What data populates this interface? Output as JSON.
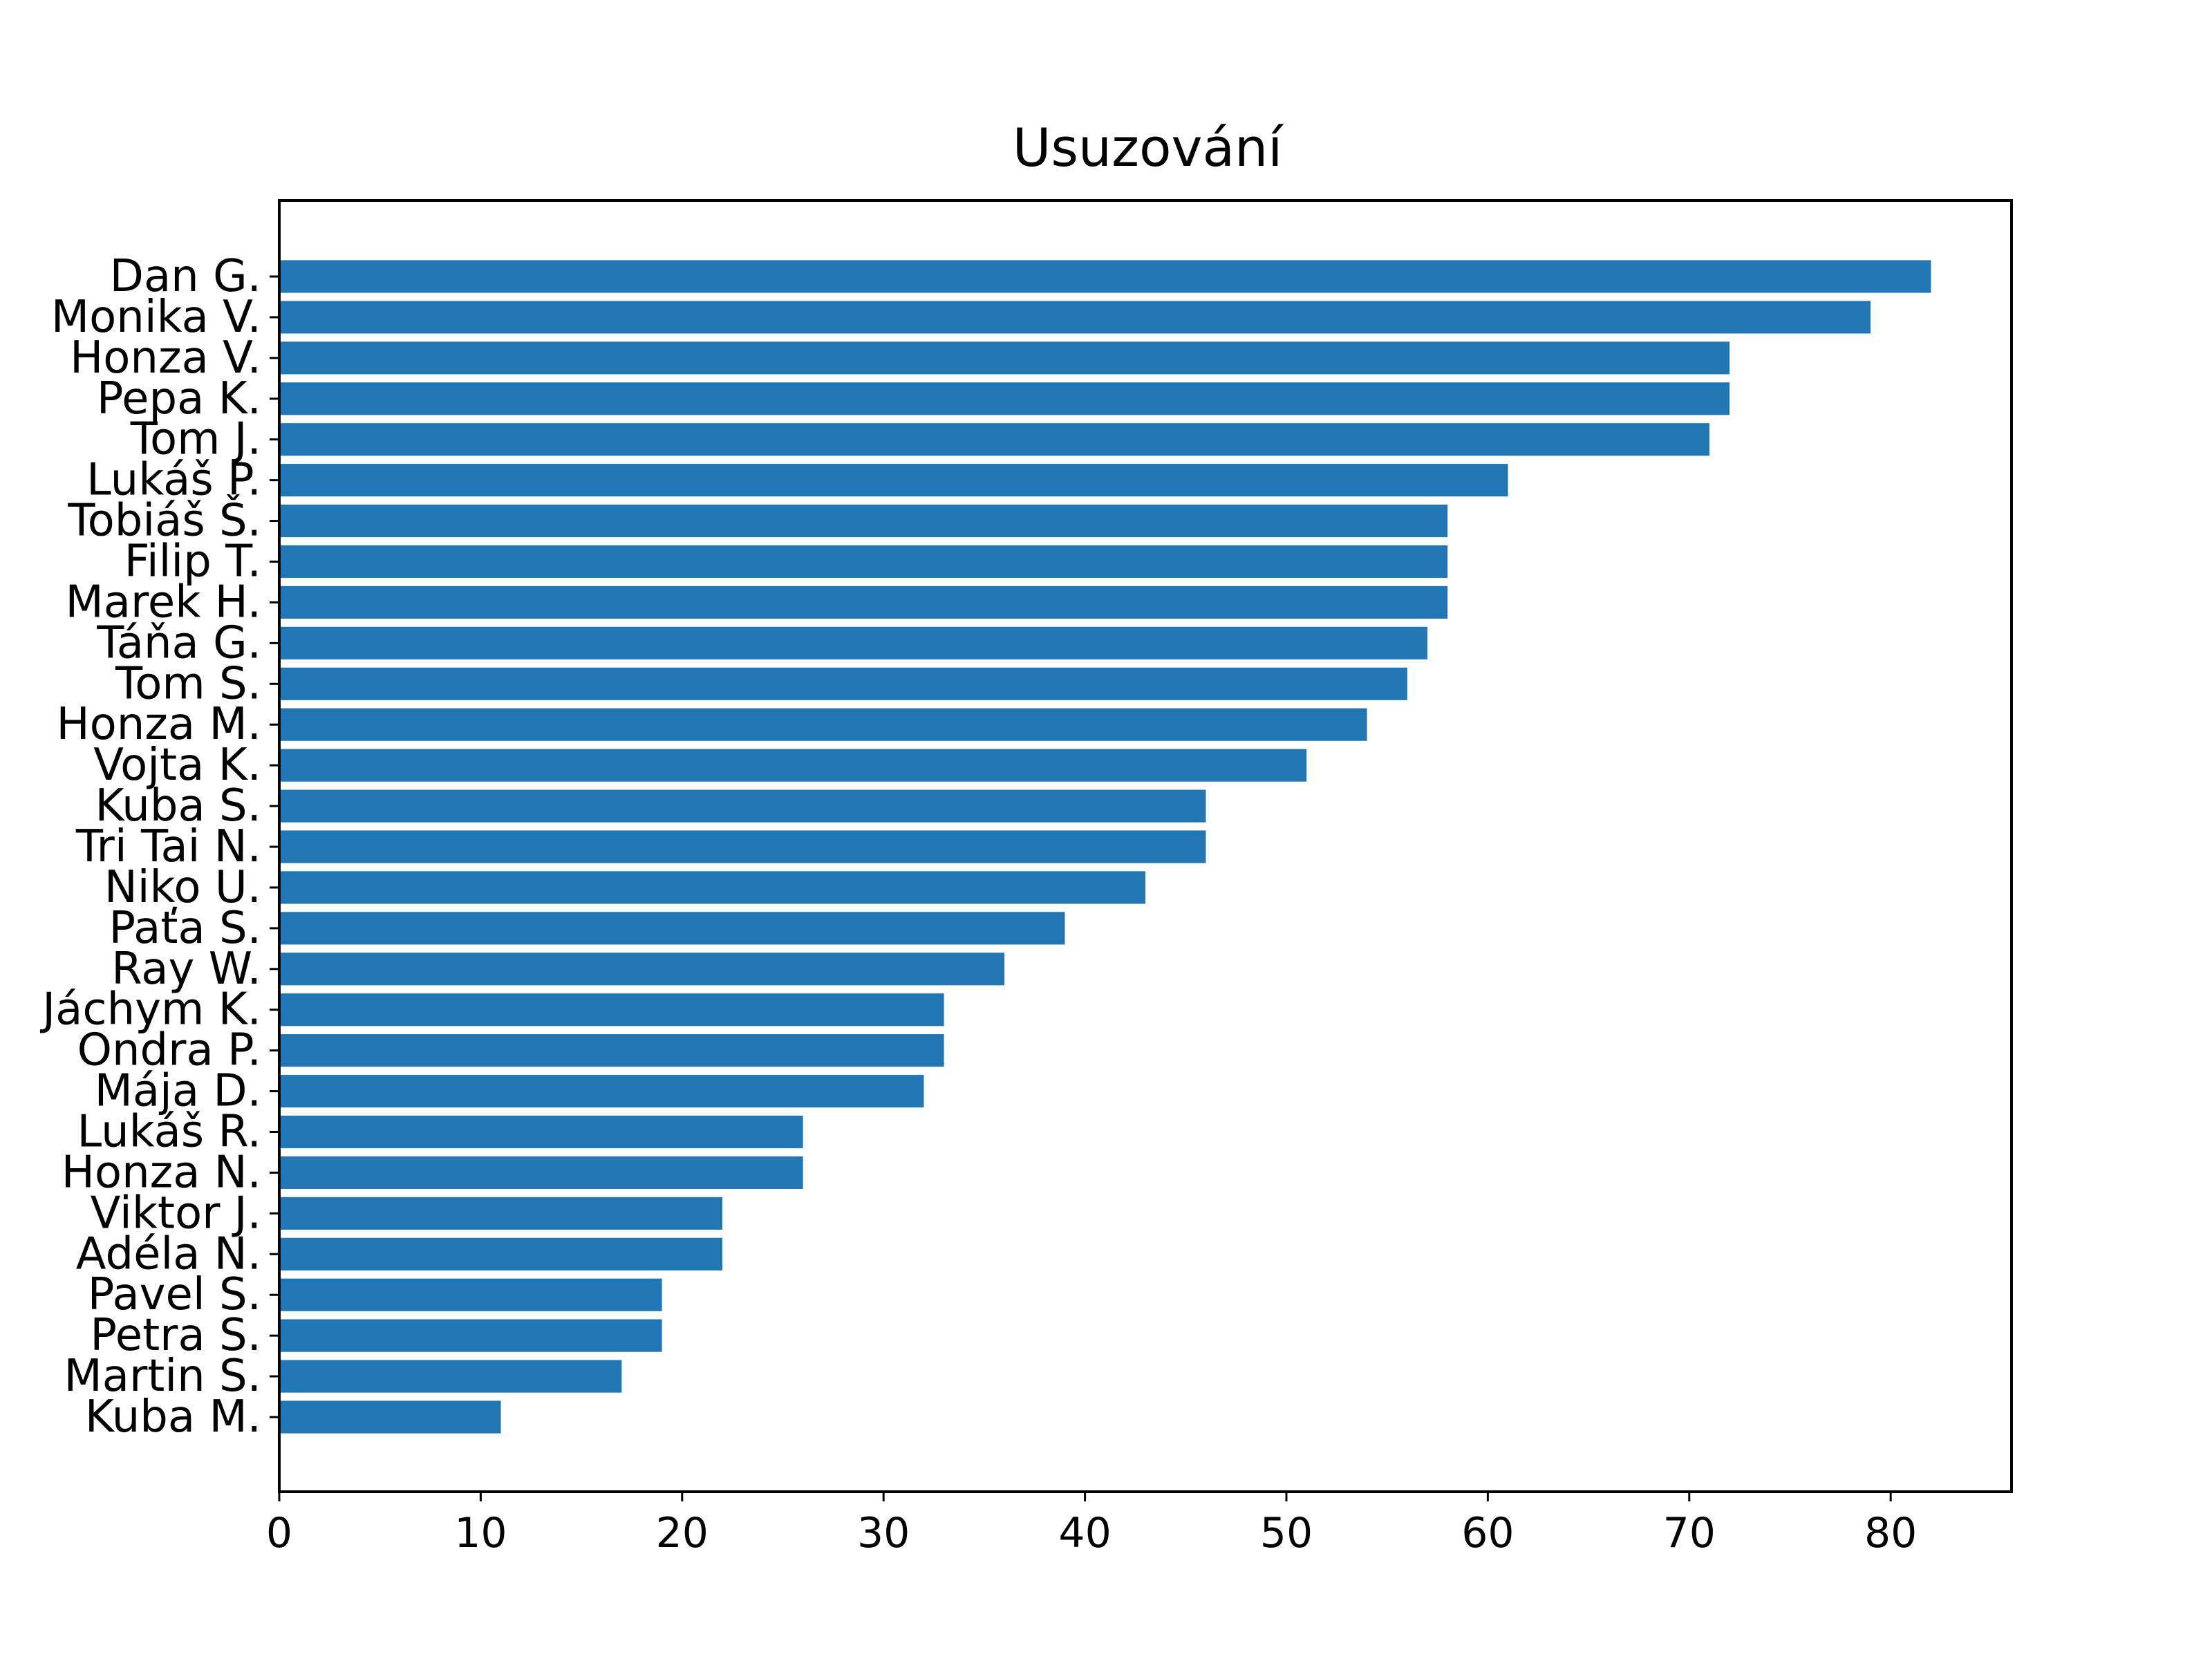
{
  "chart_data": {
    "type": "bar",
    "orientation": "horizontal",
    "title": "Usuzování",
    "xlabel": "",
    "ylabel": "",
    "xlim": [
      0,
      86
    ],
    "xticks": [
      "0",
      "10",
      "20",
      "30",
      "40",
      "50",
      "60",
      "70",
      "80"
    ],
    "bar_color": "#2077b4",
    "grid": false,
    "categories": [
      "Dan G.",
      "Monika V.",
      "Honza V.",
      "Pepa K.",
      "Tom J.",
      "Lukáš P.",
      "Tobiáš Š.",
      "Filip T.",
      "Marek H.",
      "Táňa G.",
      "Tom S.",
      "Honza M.",
      "Vojta K.",
      "Kuba S.",
      "Tri Tai N.",
      "Niko U.",
      "Paťa S.",
      "Ray W.",
      "Jáchym K.",
      "Ondra P.",
      "Mája D.",
      "Lukáš R.",
      "Honza N.",
      "Viktor J.",
      "Adéla N.",
      "Pavel S.",
      "Petra S.",
      "Martin S.",
      "Kuba M."
    ],
    "values": [
      82,
      79,
      72,
      72,
      71,
      61,
      58,
      58,
      58,
      57,
      56,
      54,
      51,
      46,
      46,
      43,
      39,
      36,
      33,
      33,
      32,
      26,
      26,
      22,
      22,
      19,
      19,
      17,
      11
    ]
  }
}
